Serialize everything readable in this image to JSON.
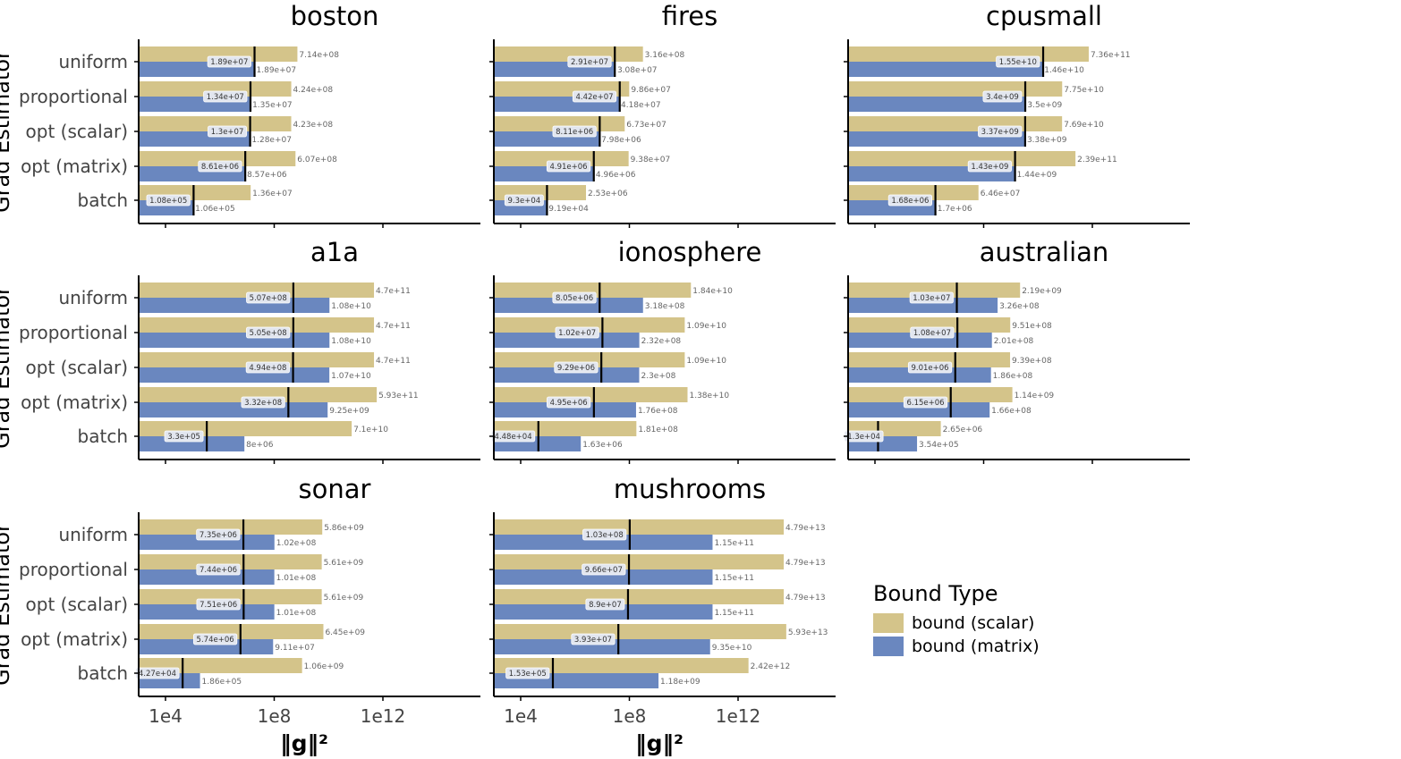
{
  "chart_data": {
    "type": "bar",
    "orientation": "horizontal",
    "x_scale": "log",
    "xlabel": "‖g‖²",
    "ylabel": "Grad Estimator",
    "x_tick_labels": [
      "1e4",
      "1e8",
      "1e12"
    ],
    "x_tick_values": [
      10000,
      100000000,
      1000000000000
    ],
    "categories": [
      "uniform",
      "proportional",
      "opt (scalar)",
      "opt (matrix)",
      "batch"
    ],
    "legend": {
      "title": "Bound Type",
      "entries": [
        {
          "name": "bound (scalar)",
          "color": "#d4c48a"
        },
        {
          "name": "bound (matrix)",
          "color": "#6a87bf"
        }
      ]
    },
    "panels": [
      {
        "title": "boston",
        "scalar_labels": [
          "7.14e+08",
          "4.24e+08",
          "4.23e+08",
          "6.07e+08",
          "1.36e+07"
        ],
        "matrix_labels": [
          "1.89e+07",
          "1.35e+07",
          "1.28e+07",
          "8.57e+06",
          "1.06e+05"
        ],
        "actual_labels": [
          "1.89e+07",
          "1.34e+07",
          "1.3e+07",
          "8.61e+06",
          "1.08e+05"
        ]
      },
      {
        "title": "fires",
        "scalar_labels": [
          "3.16e+08",
          "9.86e+07",
          "6.73e+07",
          "9.38e+07",
          "2.53e+06"
        ],
        "matrix_labels": [
          "3.08e+07",
          "4.18e+07",
          "7.98e+06",
          "4.96e+06",
          "9.19e+04"
        ],
        "actual_labels": [
          "2.91e+07",
          "4.42e+07",
          "8.11e+06",
          "4.91e+06",
          "9.3e+04"
        ]
      },
      {
        "title": "cpusmall",
        "scalar_labels": [
          "7.36e+11",
          "7.75e+10",
          "7.69e+10",
          "2.39e+11",
          "6.46e+07"
        ],
        "matrix_labels": [
          "1.46e+10",
          "3.5e+09",
          "3.38e+09",
          "1.44e+09",
          "1.7e+06"
        ],
        "actual_labels": [
          "1.55e+10",
          "3.4e+09",
          "3.37e+09",
          "1.43e+09",
          "1.68e+06"
        ]
      },
      {
        "title": "a1a",
        "scalar_labels": [
          "4.7e+11",
          "4.7e+11",
          "4.7e+11",
          "5.93e+11",
          "7.1e+10"
        ],
        "matrix_labels": [
          "1.08e+10",
          "1.08e+10",
          "1.07e+10",
          "9.25e+09",
          "8e+06"
        ],
        "actual_labels": [
          "5.07e+08",
          "5.05e+08",
          "4.94e+08",
          "3.32e+08",
          "3.3e+05"
        ]
      },
      {
        "title": "ionosphere",
        "scalar_labels": [
          "1.84e+10",
          "1.09e+10",
          "1.09e+10",
          "1.38e+10",
          "1.81e+08"
        ],
        "matrix_labels": [
          "3.18e+08",
          "2.32e+08",
          "2.3e+08",
          "1.76e+08",
          "1.63e+06"
        ],
        "actual_labels": [
          "8.05e+06",
          "1.02e+07",
          "9.29e+06",
          "4.95e+06",
          "4.48e+04"
        ]
      },
      {
        "title": "australian",
        "scalar_labels": [
          "2.19e+09",
          "9.51e+08",
          "9.39e+08",
          "1.14e+09",
          "2.65e+06"
        ],
        "matrix_labels": [
          "3.26e+08",
          "2.01e+08",
          "1.86e+08",
          "1.66e+08",
          "3.54e+05"
        ],
        "actual_labels": [
          "1.03e+07",
          "1.08e+07",
          "9.01e+06",
          "6.15e+06",
          "1.3e+04"
        ]
      },
      {
        "title": "sonar",
        "scalar_labels": [
          "5.86e+09",
          "5.61e+09",
          "5.61e+09",
          "6.45e+09",
          "1.06e+09"
        ],
        "matrix_labels": [
          "1.02e+08",
          "1.01e+08",
          "1.01e+08",
          "9.11e+07",
          "1.86e+05"
        ],
        "actual_labels": [
          "7.35e+06",
          "7.44e+06",
          "7.51e+06",
          "5.74e+06",
          "4.27e+04"
        ]
      },
      {
        "title": "mushrooms",
        "scalar_labels": [
          "4.79e+13",
          "4.79e+13",
          "4.79e+13",
          "5.93e+13",
          "2.42e+12"
        ],
        "matrix_labels": [
          "1.15e+11",
          "1.15e+11",
          "1.15e+11",
          "9.35e+10",
          "1.18e+09"
        ],
        "actual_labels": [
          "1.03e+08",
          "9.66e+07",
          "8.9e+07",
          "3.93e+07",
          "1.53e+05"
        ]
      }
    ]
  }
}
